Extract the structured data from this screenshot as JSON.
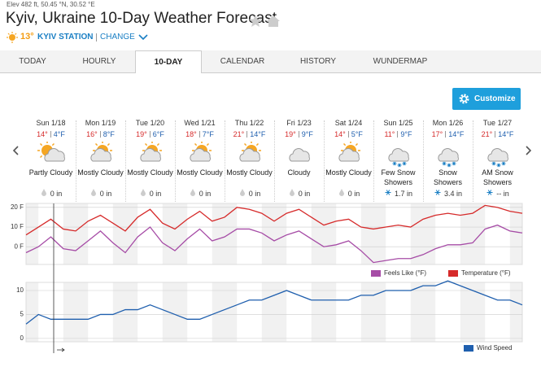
{
  "header": {
    "location_meta": "Elev 482 ft, 50.45 °N, 30.52 °E",
    "title": "Kyiv, Ukraine 10-Day Weather Forecast",
    "current_temp": "13°",
    "station": "KYIV STATION",
    "change": "CHANGE"
  },
  "tabs": [
    "TODAY",
    "HOURLY",
    "10-DAY",
    "CALENDAR",
    "HISTORY",
    "WUNDERMAP"
  ],
  "active_tab": "10-DAY",
  "button": "Customize",
  "days": [
    {
      "date": "Sun 1/18",
      "high": "14°",
      "low": "4°F",
      "condition": "Partly Cloudy",
      "precip": "0 in"
    },
    {
      "date": "Mon 1/19",
      "high": "16°",
      "low": "8°F",
      "condition": "Mostly Cloudy",
      "precip": "0 in"
    },
    {
      "date": "Tue 1/20",
      "high": "19°",
      "low": "6°F",
      "condition": "Mostly Cloudy",
      "precip": "0 in"
    },
    {
      "date": "Wed 1/21",
      "high": "18°",
      "low": "7°F",
      "condition": "Mostly Cloudy",
      "precip": "0 in"
    },
    {
      "date": "Thu 1/22",
      "high": "21°",
      "low": "14°F",
      "condition": "Mostly Cloudy",
      "precip": "0 in"
    },
    {
      "date": "Fri 1/23",
      "high": "19°",
      "low": "9°F",
      "condition": "Cloudy",
      "precip": "0 in"
    },
    {
      "date": "Sat 1/24",
      "high": "14°",
      "low": "5°F",
      "condition": "Mostly Cloudy",
      "precip": "0 in"
    },
    {
      "date": "Sun 1/25",
      "high": "11°",
      "low": "9°F",
      "condition": "Few Snow Showers",
      "precip": "1.7 in"
    },
    {
      "date": "Mon 1/26",
      "high": "17°",
      "low": "14°F",
      "condition": "Snow Showers",
      "precip": "3.4 in"
    },
    {
      "date": "Tue 1/27",
      "high": "21°",
      "low": "14°F",
      "condition": "AM Snow Showers",
      "precip": "-- in"
    }
  ],
  "charts": [
    {
      "type": "line",
      "ylim": [
        -9,
        22
      ],
      "yticks": [
        {
          "value": 20,
          "label": "20 F"
        },
        {
          "value": 10,
          "label": "10 F"
        },
        {
          "value": 0,
          "label": "0 F"
        }
      ],
      "series": [
        {
          "name": "Feels Like (°F)",
          "color": "#a64ca6",
          "values": [
            -3,
            0,
            5,
            -1,
            -2,
            3,
            8,
            2,
            -3,
            5,
            10,
            2,
            -2,
            4,
            9,
            3,
            5,
            9,
            9,
            7,
            3,
            6,
            8,
            4,
            0,
            1,
            3,
            -2,
            -8,
            -7,
            -6,
            -6,
            -4,
            -1,
            1,
            1,
            2,
            9,
            11,
            8,
            7
          ]
        },
        {
          "name": "Temperature (°F)",
          "color": "#d62a2a",
          "values": [
            6,
            10,
            14,
            9,
            8,
            13,
            16,
            12,
            8,
            15,
            19,
            12,
            9,
            14,
            18,
            13,
            15,
            20,
            19,
            17,
            13,
            17,
            19,
            15,
            11,
            13,
            14,
            10,
            9,
            10,
            11,
            10,
            14,
            16,
            17,
            16,
            17,
            21,
            20,
            18,
            17
          ]
        }
      ]
    },
    {
      "type": "line",
      "ylim": [
        -0.7,
        11.7
      ],
      "yticks": [
        10,
        5,
        0
      ],
      "series": [
        {
          "name": "Wind Speed",
          "color": "#1f5fae",
          "values": [
            3,
            5,
            4,
            4,
            4,
            4,
            5,
            5,
            6,
            6,
            7,
            6,
            5,
            4,
            4,
            5,
            6,
            7,
            8,
            8,
            9,
            10,
            9,
            8,
            8,
            8,
            8,
            9,
            9,
            10,
            10,
            10,
            11,
            11,
            12,
            11,
            10,
            9,
            8,
            8,
            7
          ]
        }
      ]
    }
  ]
}
